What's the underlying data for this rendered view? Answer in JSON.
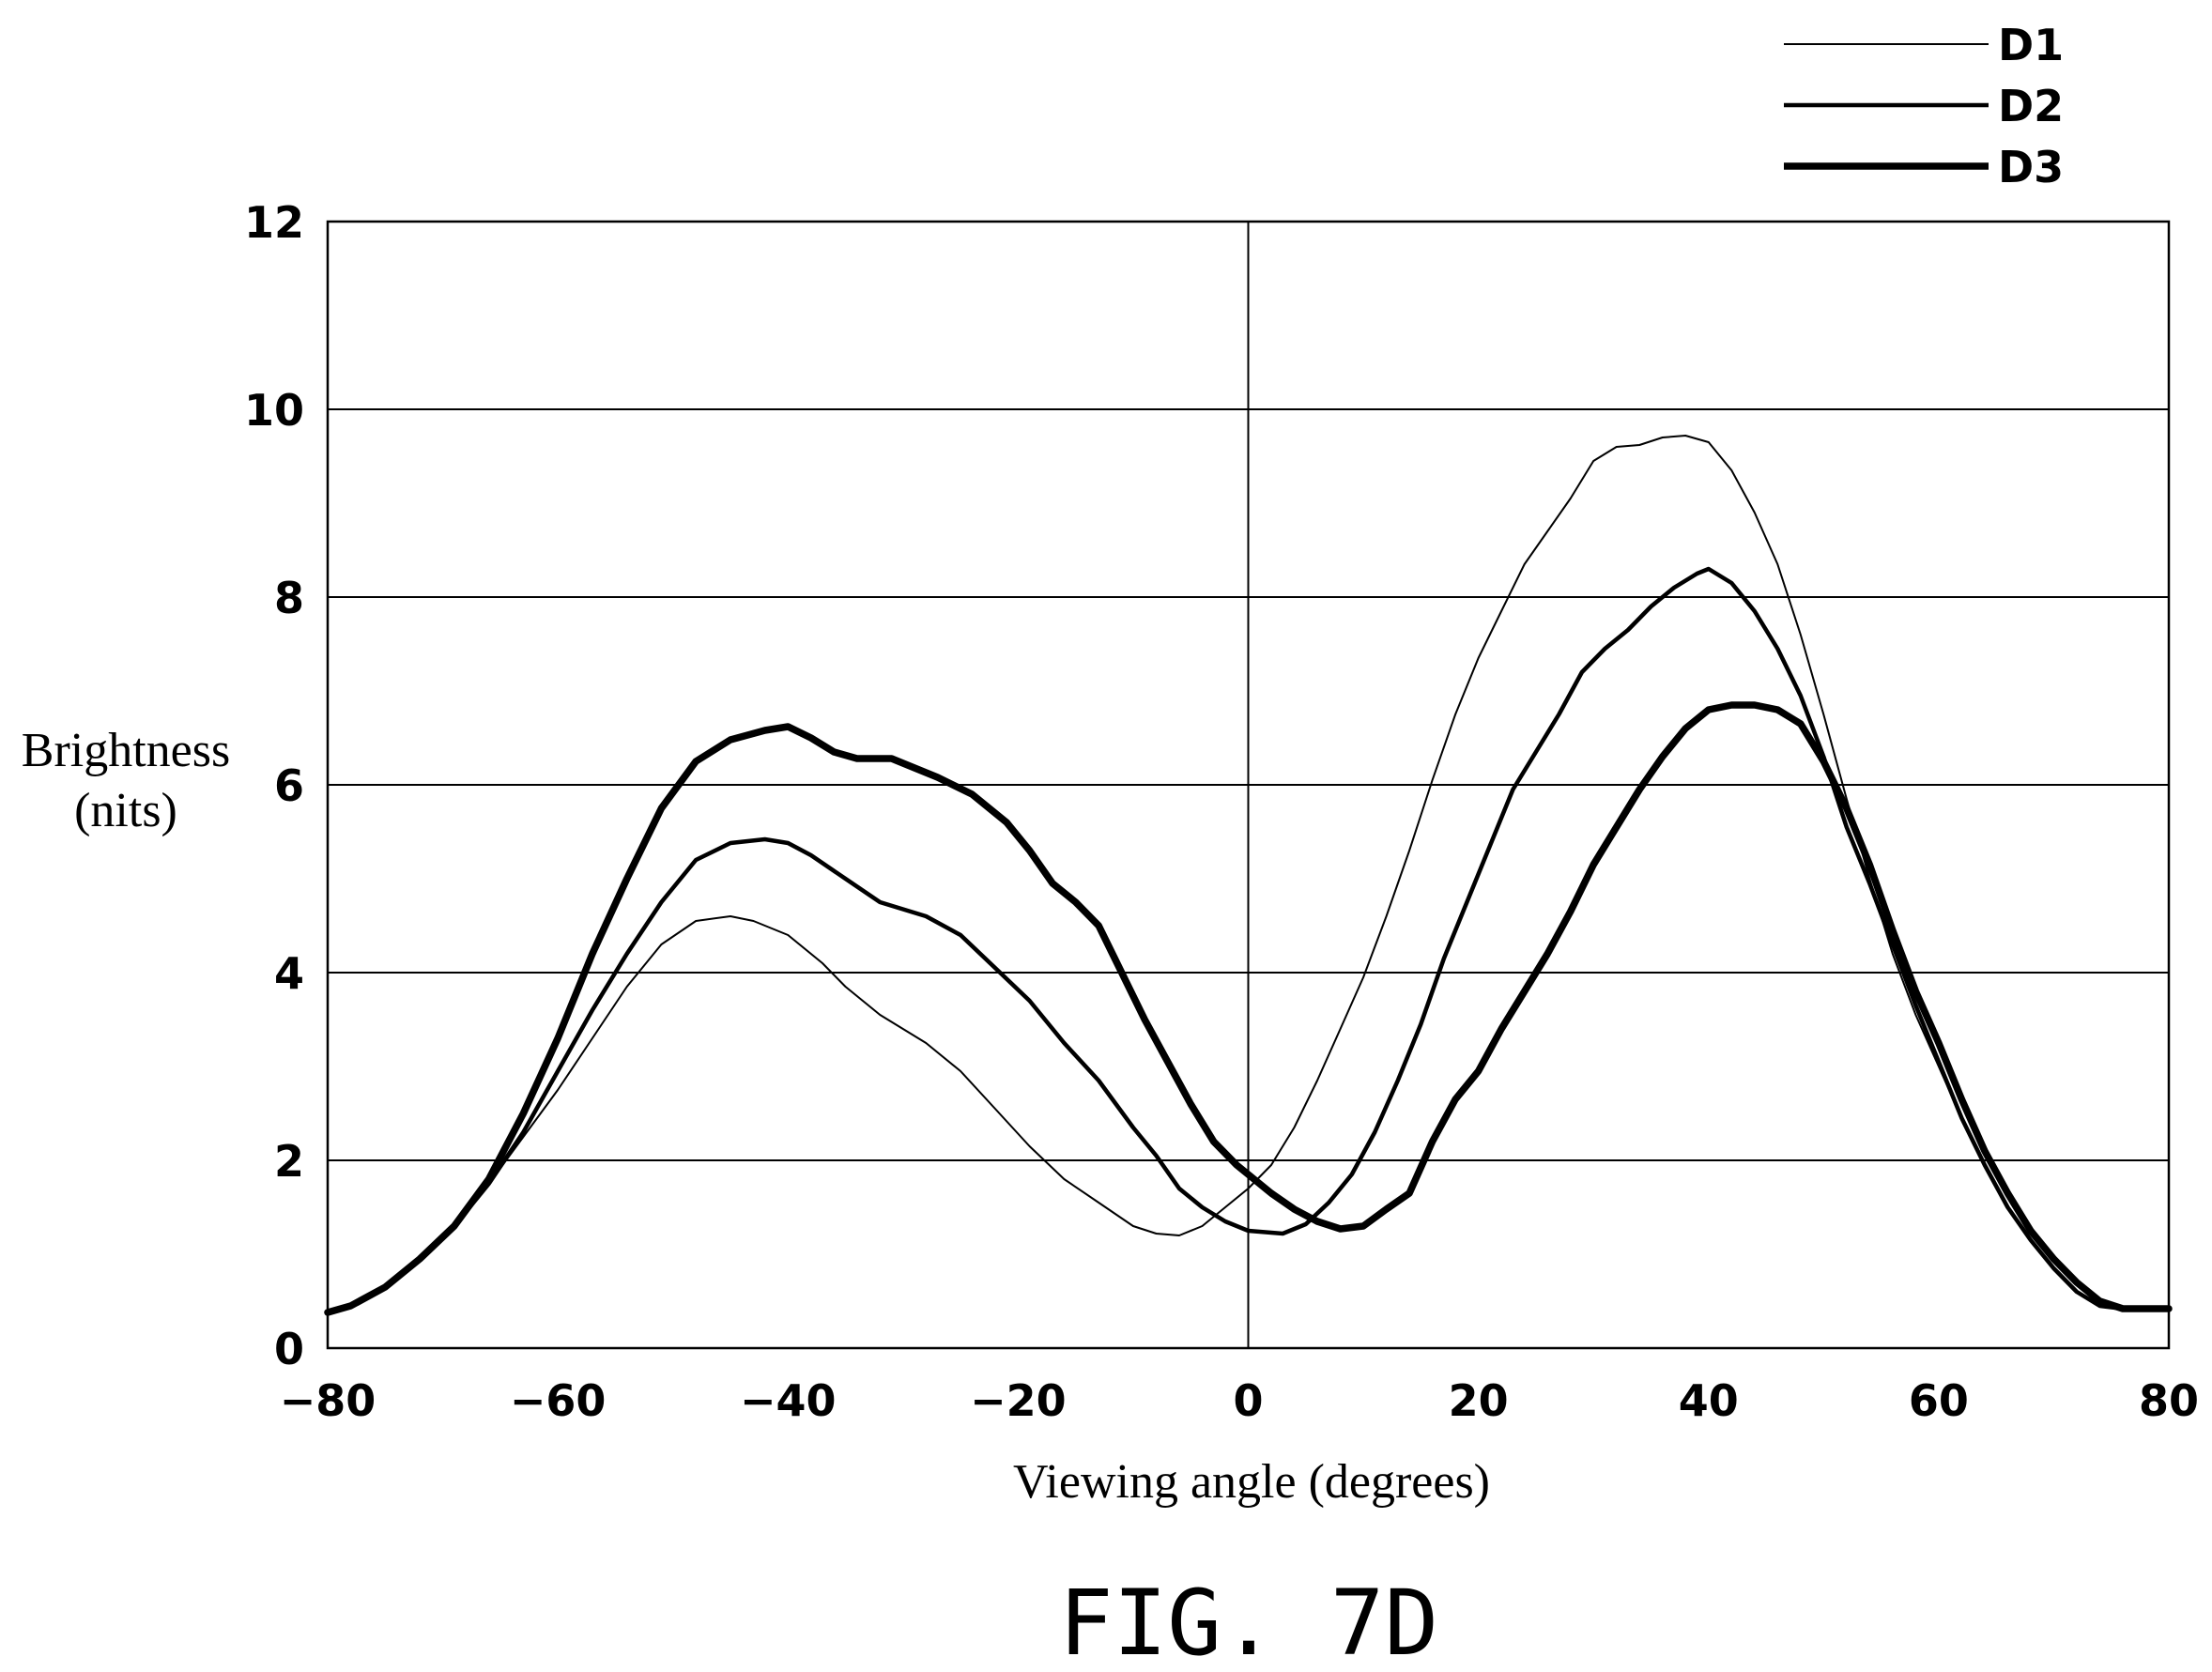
{
  "chart_data": {
    "type": "line",
    "title": "",
    "caption": "FIG. 7D",
    "xlabel": "Viewing angle (degrees)",
    "ylabel_lines": [
      "Brightness",
      "(nits)"
    ],
    "xlim": [
      -80,
      80
    ],
    "ylim": [
      0,
      12
    ],
    "xticks": [
      -80,
      -60,
      -40,
      -20,
      0,
      20,
      40,
      60,
      80
    ],
    "yticks": [
      0,
      2,
      4,
      6,
      8,
      10,
      12
    ],
    "grid": "horizontal lines at y ticks and vertical line at x=0",
    "legend_position": "top-right, above plot",
    "line_color": "#000000",
    "series": [
      {
        "name": "D1",
        "weight": "thin",
        "x": [
          -80,
          -78,
          -75,
          -72,
          -69,
          -66,
          -63,
          -60,
          -57,
          -54,
          -51,
          -48,
          -45,
          -43,
          -40,
          -37,
          -35,
          -32,
          -28,
          -25,
          -22,
          -19,
          -16,
          -13,
          -10,
          -8,
          -6,
          -4,
          -2,
          0,
          2,
          4,
          6,
          8,
          10,
          12,
          14,
          16,
          18,
          20,
          22,
          24,
          26,
          28,
          30,
          32,
          34,
          36,
          38,
          40,
          42,
          44,
          46,
          48,
          50,
          52,
          54,
          56,
          58,
          60,
          62,
          64,
          66,
          68,
          70,
          72,
          74,
          76,
          78,
          80
        ],
        "y": [
          0.38,
          0.45,
          0.65,
          0.95,
          1.3,
          1.75,
          2.25,
          2.75,
          3.3,
          3.85,
          4.3,
          4.55,
          4.6,
          4.55,
          4.4,
          4.1,
          3.85,
          3.55,
          3.25,
          2.95,
          2.55,
          2.15,
          1.8,
          1.55,
          1.3,
          1.22,
          1.2,
          1.3,
          1.5,
          1.7,
          1.95,
          2.35,
          2.85,
          3.4,
          3.95,
          4.6,
          5.3,
          6.05,
          6.75,
          7.35,
          7.85,
          8.35,
          8.7,
          9.05,
          9.45,
          9.6,
          9.62,
          9.7,
          9.72,
          9.65,
          9.35,
          8.9,
          8.35,
          7.6,
          6.75,
          5.85,
          5.0,
          4.2,
          3.55,
          3.0,
          2.45,
          1.95,
          1.5,
          1.15,
          0.85,
          0.6,
          0.45,
          0.42,
          0.42,
          0.42
        ]
      },
      {
        "name": "D2",
        "weight": "medium",
        "x": [
          -80,
          -78,
          -75,
          -72,
          -69,
          -66,
          -63,
          -60,
          -57,
          -54,
          -51,
          -48,
          -45,
          -42,
          -40,
          -38,
          -35,
          -32,
          -28,
          -25,
          -22,
          -19,
          -16,
          -13,
          -10,
          -8,
          -6,
          -4,
          -2,
          0,
          2,
          3,
          5,
          7,
          9,
          11,
          13,
          15,
          17,
          19,
          21,
          23,
          25,
          27,
          29,
          31,
          33,
          35,
          37,
          39,
          40,
          42,
          44,
          46,
          48,
          50,
          52,
          54,
          56,
          58,
          60,
          62,
          64,
          66,
          68,
          70,
          72,
          74,
          76,
          78,
          80
        ],
        "y": [
          0.38,
          0.45,
          0.65,
          0.95,
          1.3,
          1.75,
          2.3,
          2.95,
          3.6,
          4.2,
          4.75,
          5.2,
          5.38,
          5.42,
          5.38,
          5.25,
          5.0,
          4.75,
          4.6,
          4.4,
          4.05,
          3.7,
          3.25,
          2.85,
          2.35,
          2.05,
          1.7,
          1.5,
          1.35,
          1.25,
          1.23,
          1.22,
          1.32,
          1.55,
          1.85,
          2.3,
          2.85,
          3.45,
          4.15,
          4.75,
          5.35,
          5.95,
          6.35,
          6.75,
          7.2,
          7.45,
          7.65,
          7.9,
          8.1,
          8.25,
          8.3,
          8.15,
          7.85,
          7.45,
          6.95,
          6.3,
          5.55,
          4.95,
          4.3,
          3.65,
          3.05,
          2.45,
          1.95,
          1.5,
          1.15,
          0.85,
          0.6,
          0.45,
          0.42,
          0.42,
          0.42
        ]
      },
      {
        "name": "D3",
        "weight": "thick",
        "x": [
          -80,
          -78,
          -75,
          -72,
          -69,
          -66,
          -63,
          -60,
          -57,
          -54,
          -51,
          -48,
          -45,
          -42,
          -40,
          -38,
          -36,
          -34,
          -31,
          -29,
          -27,
          -24,
          -21,
          -19,
          -17,
          -15,
          -13,
          -11,
          -9,
          -7,
          -5,
          -3,
          -1,
          0,
          2,
          4,
          6,
          8,
          10,
          12,
          14,
          16,
          18,
          20,
          22,
          24,
          26,
          28,
          30,
          32,
          34,
          36,
          38,
          40,
          42,
          44,
          46,
          48,
          50,
          52,
          54,
          56,
          58,
          60,
          62,
          64,
          66,
          68,
          70,
          72,
          74,
          76,
          78,
          80
        ],
        "y": [
          0.38,
          0.45,
          0.65,
          0.95,
          1.3,
          1.8,
          2.5,
          3.3,
          4.2,
          5.0,
          5.75,
          6.25,
          6.48,
          6.58,
          6.62,
          6.5,
          6.35,
          6.28,
          6.28,
          6.18,
          6.08,
          5.9,
          5.6,
          5.3,
          4.95,
          4.75,
          4.5,
          4.0,
          3.5,
          3.05,
          2.6,
          2.2,
          1.95,
          1.85,
          1.65,
          1.48,
          1.35,
          1.27,
          1.3,
          1.48,
          1.65,
          2.2,
          2.65,
          2.95,
          3.4,
          3.8,
          4.2,
          4.65,
          5.15,
          5.55,
          5.95,
          6.3,
          6.6,
          6.8,
          6.85,
          6.85,
          6.8,
          6.65,
          6.25,
          5.75,
          5.15,
          4.45,
          3.8,
          3.25,
          2.65,
          2.1,
          1.65,
          1.25,
          0.95,
          0.7,
          0.5,
          0.42,
          0.42,
          0.42
        ]
      }
    ]
  }
}
